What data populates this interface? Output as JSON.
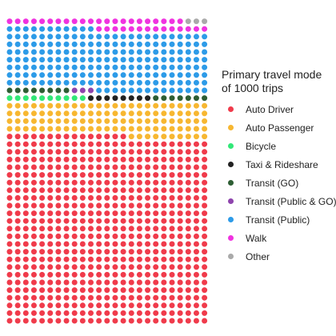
{
  "chart_data": {
    "type": "waffle",
    "total": 1000,
    "grid": {
      "columns": 25,
      "rows": 40
    },
    "legend": {
      "title_line1": "Primary travel mode",
      "title_line2": "of 1000 trips",
      "position": "right"
    },
    "categories": [
      {
        "name": "Auto Driver",
        "value": 615,
        "color": "#f03b4b"
      },
      {
        "name": "Auto Passenger",
        "value": 110,
        "color": "#f7b731"
      },
      {
        "name": "Bicycle",
        "value": 10,
        "color": "#32e878"
      },
      {
        "name": "Taxi & Rideshare",
        "value": 8,
        "color": "#222222"
      },
      {
        "name": "Transit (GO)",
        "value": 15,
        "color": "#2e5e34"
      },
      {
        "name": "Transit (Public & GO)",
        "value": 3,
        "color": "#8e44ad"
      },
      {
        "name": "Transit (Public)",
        "value": 200,
        "color": "#2d9be8"
      },
      {
        "name": "Walk",
        "value": 36,
        "color": "#f033e0"
      },
      {
        "name": "Other",
        "value": 3,
        "color": "#aaaaaa"
      }
    ]
  }
}
